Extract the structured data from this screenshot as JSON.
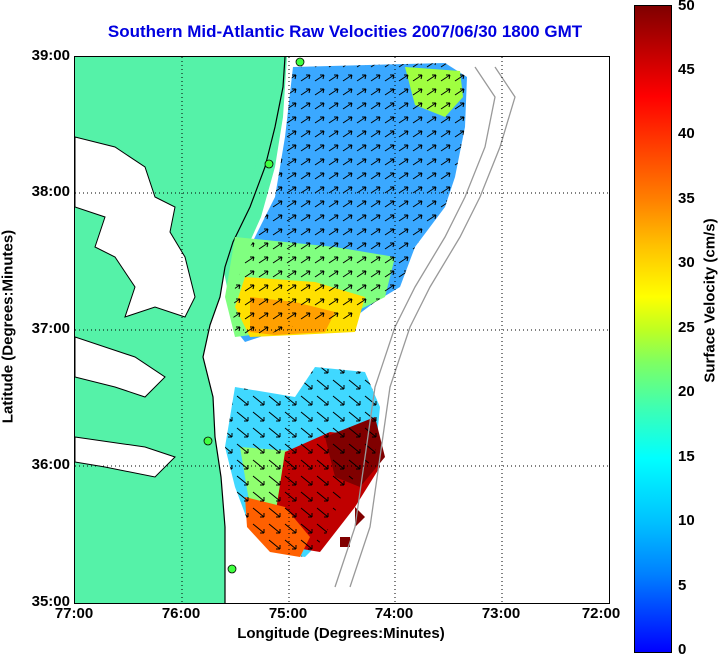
{
  "title": "Southern Mid-Atlantic Raw Velocities 2007/06/30 1800 GMT",
  "xlabel": "Longitude (Degrees:Minutes)",
  "ylabel": "Latitude (Degrees:Minutes)",
  "x_ticks": [
    "77:00",
    "76:00",
    "75:00",
    "74:00",
    "73:00",
    "72:00"
  ],
  "y_ticks": [
    "39:00",
    "38:00",
    "37:00",
    "36:00",
    "35:00"
  ],
  "colorbar": {
    "label": "Surface Velocity (cm/s)",
    "ticks": [
      "50",
      "45",
      "40",
      "35",
      "30",
      "25",
      "20",
      "15",
      "10",
      "5",
      "0"
    ]
  },
  "colors": {
    "land": "#55f2a8",
    "title": "#0000e0"
  }
}
